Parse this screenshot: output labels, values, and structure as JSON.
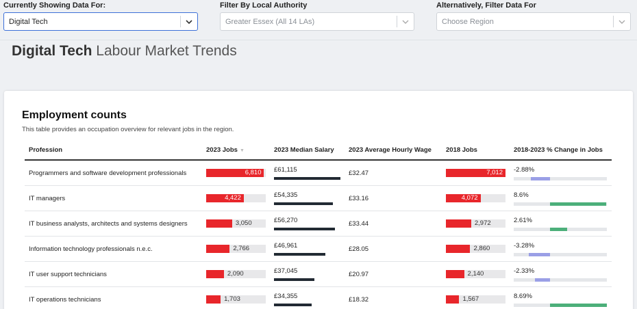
{
  "filters": [
    {
      "label": "Currently Showing Data For:",
      "value": "Digital Tech",
      "state": "active"
    },
    {
      "label": "Filter By Local Authority",
      "value": "Greater Essex (All 14 LAs)",
      "state": "muted"
    },
    {
      "label": "Alternatively, Filter Data For",
      "value": "Choose Region",
      "state": "muted"
    }
  ],
  "page_title": {
    "bold": "Digital Tech",
    "rest": " Labour Market Trends"
  },
  "card": {
    "title": "Employment counts",
    "subtitle": "This table provides an occupation overview for relevant jobs in the region."
  },
  "table": {
    "headers": [
      "Profession",
      "2023 Jobs",
      "2023 Median Salary",
      "2023 Average Hourly Wage",
      "2018 Jobs",
      "2018-2023 % Change in Jobs"
    ],
    "sort_icon": "sort-down-icon",
    "max_jobs": 7012,
    "max_salary": 61115,
    "max_abs_change": 8.69,
    "rows": [
      {
        "profession": "Programmers and software development professionals",
        "jobs_2023": 6810,
        "jobs_2023_label": "6,810",
        "salary": 61115,
        "salary_label": "£61,115",
        "hourly": "£32.47",
        "jobs_2018": 7012,
        "jobs_2018_label": "7,012",
        "change": -2.88,
        "change_label": "-2.88%"
      },
      {
        "profession": "IT managers",
        "jobs_2023": 4422,
        "jobs_2023_label": "4,422",
        "salary": 54335,
        "salary_label": "£54,335",
        "hourly": "£33.16",
        "jobs_2018": 4072,
        "jobs_2018_label": "4,072",
        "change": 8.6,
        "change_label": "8.6%"
      },
      {
        "profession": "IT business analysts, architects and systems designers",
        "jobs_2023": 3050,
        "jobs_2023_label": "3,050",
        "salary": 56270,
        "salary_label": "£56,270",
        "hourly": "£33.44",
        "jobs_2018": 2972,
        "jobs_2018_label": "2,972",
        "change": 2.61,
        "change_label": "2.61%"
      },
      {
        "profession": "Information technology professionals n.e.c.",
        "jobs_2023": 2766,
        "jobs_2023_label": "2,766",
        "salary": 46961,
        "salary_label": "£46,961",
        "hourly": "£28.05",
        "jobs_2018": 2860,
        "jobs_2018_label": "2,860",
        "change": -3.28,
        "change_label": "-3.28%"
      },
      {
        "profession": "IT user support technicians",
        "jobs_2023": 2090,
        "jobs_2023_label": "2,090",
        "salary": 37045,
        "salary_label": "£37,045",
        "hourly": "£20.97",
        "jobs_2018": 2140,
        "jobs_2018_label": "2,140",
        "change": -2.33,
        "change_label": "-2.33%"
      },
      {
        "profession": "IT operations technicians",
        "jobs_2023": 1703,
        "jobs_2023_label": "1,703",
        "salary": 34355,
        "salary_label": "£34,355",
        "hourly": "£18.32",
        "jobs_2018": 1567,
        "jobs_2018_label": "1,567",
        "change": 8.69,
        "change_label": "8.69%"
      }
    ]
  },
  "colors": {
    "jobs_bar": "#e8262b",
    "salary_bar": "#222a33",
    "change_positive": "#4caf7a",
    "change_negative": "#9a9fe6",
    "select_active_border": "#3b6fd8"
  }
}
